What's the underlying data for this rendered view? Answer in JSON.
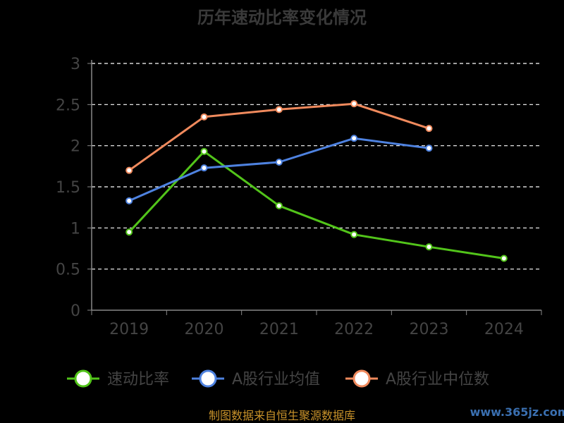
{
  "title": "历年速动比率变化情况",
  "source": "制图数据来自恒生聚源数据库",
  "watermark": "www.365jz.com",
  "colors": {
    "background": "#000000",
    "axis": "#888888",
    "grid": "#ffffff",
    "text": "#444444"
  },
  "chart_data": {
    "type": "line",
    "title": "历年速动比率变化情况",
    "xlabel": "",
    "ylabel": "",
    "categories": [
      "2019",
      "2020",
      "2021",
      "2022",
      "2023",
      "2024"
    ],
    "y_ticks": [
      "0",
      "0.5",
      "1",
      "1.5",
      "2",
      "2.5",
      "3"
    ],
    "ylim": [
      0,
      3
    ],
    "grid": true,
    "legend_position": "bottom",
    "series": [
      {
        "name": "速动比率",
        "color": "#52c41a",
        "values": [
          0.95,
          1.93,
          1.27,
          0.92,
          0.77,
          0.63
        ]
      },
      {
        "name": "A股行业均值",
        "color": "#4e82e0",
        "values": [
          1.33,
          1.73,
          1.8,
          2.09,
          1.97,
          null
        ]
      },
      {
        "name": "A股行业中位数",
        "color": "#f08a5d",
        "values": [
          1.7,
          2.35,
          2.44,
          2.51,
          2.21,
          null
        ]
      }
    ]
  }
}
